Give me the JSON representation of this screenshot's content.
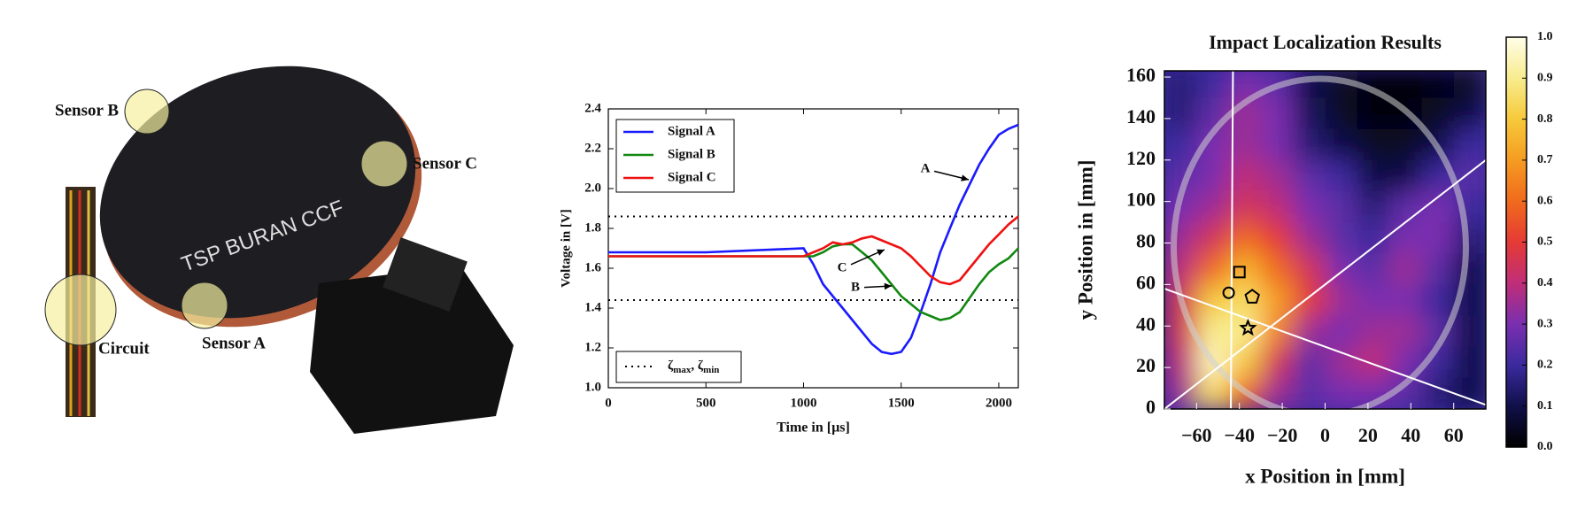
{
  "photo": {
    "labels": [
      "Sensor B",
      "Sensor C",
      "Sensor A",
      "Circuit"
    ],
    "racket_text": "TSP BURAN CCF"
  },
  "chart_data": [
    {
      "type": "line",
      "xlabel": "Time in [µs]",
      "ylabel": "Voltage in [V]",
      "x": [
        0,
        500,
        1000,
        1050,
        1100,
        1150,
        1200,
        1250,
        1300,
        1350,
        1400,
        1450,
        1500,
        1550,
        1600,
        1650,
        1700,
        1750,
        1800,
        1850,
        1900,
        1950,
        2000,
        2050,
        2100
      ],
      "series": [
        {
          "name": "Signal A",
          "color": "#1a1aff",
          "values": [
            1.68,
            1.68,
            1.7,
            1.62,
            1.52,
            1.46,
            1.4,
            1.34,
            1.28,
            1.22,
            1.18,
            1.17,
            1.18,
            1.25,
            1.38,
            1.52,
            1.68,
            1.8,
            1.92,
            2.02,
            2.12,
            2.2,
            2.27,
            2.3,
            2.32
          ]
        },
        {
          "name": "Signal B",
          "color": "#118811",
          "values": [
            1.66,
            1.66,
            1.66,
            1.66,
            1.68,
            1.71,
            1.72,
            1.72,
            1.68,
            1.64,
            1.58,
            1.52,
            1.46,
            1.42,
            1.38,
            1.36,
            1.34,
            1.35,
            1.38,
            1.45,
            1.52,
            1.58,
            1.62,
            1.65,
            1.7
          ]
        },
        {
          "name": "Signal C",
          "color": "#ee1111",
          "values": [
            1.66,
            1.66,
            1.66,
            1.68,
            1.7,
            1.73,
            1.72,
            1.73,
            1.75,
            1.76,
            1.74,
            1.72,
            1.7,
            1.66,
            1.61,
            1.56,
            1.53,
            1.52,
            1.54,
            1.6,
            1.66,
            1.72,
            1.77,
            1.82,
            1.86
          ]
        }
      ],
      "thresholds": {
        "values": [
          1.86,
          1.44
        ],
        "label_parts": [
          "ζ",
          "max",
          ", ζ",
          "min"
        ],
        "color": "#000000"
      },
      "annotations": [
        "A",
        "C",
        "B"
      ],
      "xlim": [
        0,
        2100
      ],
      "ylim": [
        1.0,
        2.4
      ],
      "xticks": [
        0,
        500,
        1000,
        1500,
        2000
      ],
      "yticks": [
        {
          "value": 1.0,
          "label": "1.0"
        },
        1.2,
        1.4,
        1.6,
        1.8,
        {
          "value": 2.0,
          "label": "2.0"
        },
        2.2,
        2.4
      ]
    },
    {
      "type": "heatmap",
      "title": "Impact Localization Results",
      "xlabel": "x Position in [mm]",
      "ylabel": "y Position in [mm]",
      "x": [
        -67.5,
        -52.5,
        -37.5,
        -22.5,
        -7.5,
        7.5,
        22.5,
        37.5,
        52.5,
        67.5
      ],
      "y": [
        157.5,
        142.5,
        127.5,
        112.5,
        97.5,
        82.5,
        67.5,
        52.5,
        37.5,
        22.5,
        7.5
      ],
      "z": [
        [
          0.15,
          0.2,
          0.3,
          0.25,
          0.1,
          0.05,
          0.02,
          0.02,
          0.03,
          0.05
        ],
        [
          0.15,
          0.25,
          0.35,
          0.3,
          0.12,
          0.05,
          0.02,
          0.02,
          0.05,
          0.1
        ],
        [
          0.2,
          0.3,
          0.35,
          0.3,
          0.15,
          0.1,
          0.05,
          0.05,
          0.1,
          0.2
        ],
        [
          0.25,
          0.3,
          0.4,
          0.35,
          0.25,
          0.2,
          0.1,
          0.1,
          0.2,
          0.25
        ],
        [
          0.3,
          0.35,
          0.45,
          0.4,
          0.3,
          0.25,
          0.15,
          0.25,
          0.3,
          0.2
        ],
        [
          0.35,
          0.45,
          0.6,
          0.5,
          0.35,
          0.25,
          0.2,
          0.3,
          0.3,
          0.15
        ],
        [
          0.4,
          0.6,
          0.75,
          0.6,
          0.45,
          0.3,
          0.25,
          0.35,
          0.25,
          0.1
        ],
        [
          0.45,
          0.8,
          0.85,
          0.7,
          0.5,
          0.35,
          0.3,
          0.3,
          0.2,
          0.1
        ],
        [
          0.45,
          0.9,
          0.9,
          0.65,
          0.35,
          0.3,
          0.35,
          0.35,
          0.25,
          0.1
        ],
        [
          0.4,
          0.95,
          0.8,
          0.45,
          0.25,
          0.35,
          0.4,
          0.3,
          0.2,
          0.1
        ],
        [
          0.35,
          0.85,
          0.6,
          0.35,
          0.25,
          0.3,
          0.3,
          0.25,
          0.15,
          0.1
        ]
      ],
      "colormap": [
        "#000000",
        "#10104a",
        "#3b2a9e",
        "#7a2fb0",
        "#c02e78",
        "#e53a35",
        "#f06b1c",
        "#f59c22",
        "#f6c93a",
        "#f8ec8e",
        "#fffde9"
      ],
      "zlim": [
        0,
        1
      ],
      "cticks": [
        {
          "value": 0,
          "label": "0.0"
        },
        0.1,
        0.2,
        0.3,
        0.4,
        0.5,
        0.6,
        0.7,
        0.8,
        0.9,
        {
          "value": 1,
          "label": "1.0"
        }
      ],
      "xlim": [
        -75,
        75
      ],
      "ylim": [
        0,
        163
      ],
      "xticks": [
        {
          "value": -60,
          "label": "−60"
        },
        {
          "value": -40,
          "label": "−40"
        },
        {
          "value": -20,
          "label": "−20"
        },
        0,
        20,
        40,
        60
      ],
      "yticks": [
        0,
        20,
        40,
        60,
        80,
        100,
        120,
        140,
        160
      ],
      "lines": [
        {
          "x": [
            -43,
            -44
          ],
          "y": [
            163,
            0
          ]
        },
        {
          "x": [
            -75,
            75
          ],
          "y": [
            0,
            120
          ]
        },
        {
          "x": [
            -75,
            75
          ],
          "y": [
            58,
            2
          ]
        }
      ],
      "markers": [
        {
          "shape": "square",
          "x": -40,
          "y": 66
        },
        {
          "shape": "circle",
          "x": -45,
          "y": 56
        },
        {
          "shape": "pentagon",
          "x": -34,
          "y": 54
        },
        {
          "shape": "star",
          "x": -36,
          "y": 39
        }
      ]
    }
  ]
}
